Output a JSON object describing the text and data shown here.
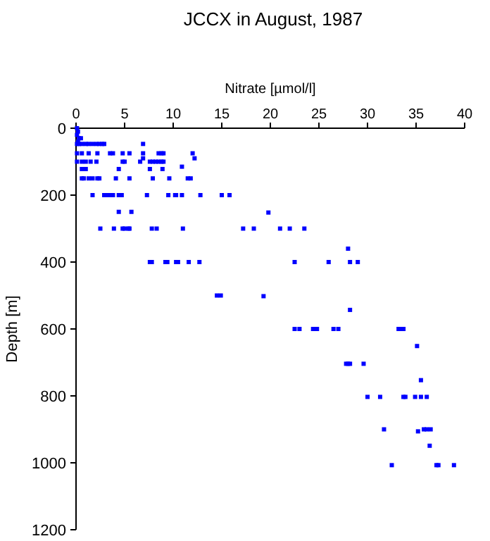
{
  "chart_data": {
    "type": "scatter",
    "title": "JCCX in August, 1987",
    "xlabel": "Nitrate [µmol/l]",
    "ylabel": "Depth [m]",
    "marker": "square",
    "xlim": [
      0,
      40
    ],
    "xticks": [
      0,
      5,
      10,
      15,
      20,
      25,
      30,
      35,
      40
    ],
    "ylim": [
      1200,
      0
    ],
    "yticks": [
      0,
      200,
      400,
      600,
      800,
      1000,
      1200
    ],
    "series": [
      {
        "color": "#0000ff",
        "x": [
          0.1,
          0.2,
          0.1,
          0.3,
          0.5,
          0.2,
          0.1,
          0.3,
          0.6,
          1.0,
          1.3,
          1.7,
          2.1,
          2.4,
          2.7,
          2.9,
          6.9,
          0.1,
          0.6,
          1.3,
          2.2,
          3.5,
          3.8,
          4.8,
          5.5,
          6.9,
          8.5,
          8.8,
          9.0,
          12.0,
          12.2,
          6.9,
          0.1,
          0.6,
          1.0,
          1.5,
          2.1,
          4.8,
          5.0,
          6.6,
          7.6,
          7.9,
          8.2,
          8.5,
          8.8,
          9.0,
          10.9,
          0.6,
          1.0,
          4.4,
          7.6,
          8.9,
          0.6,
          0.8,
          1.3,
          1.7,
          2.2,
          2.4,
          4.1,
          5.5,
          7.9,
          9.6,
          11.5,
          11.8,
          1.7,
          2.9,
          3.1,
          3.4,
          3.6,
          3.8,
          4.4,
          4.7,
          7.3,
          9.5,
          10.2,
          10.3,
          10.9,
          12.8,
          15.0,
          15.8,
          4.4,
          5.7,
          19.8,
          2.5,
          3.9,
          4.8,
          5.0,
          5.4,
          5.5,
          7.8,
          8.3,
          11.0,
          17.2,
          18.3,
          21.0,
          22.0,
          23.5,
          28.0,
          7.6,
          7.8,
          9.2,
          9.4,
          10.3,
          10.5,
          11.6,
          12.7,
          22.5,
          26.0,
          28.2,
          29.0,
          14.5,
          14.9,
          19.3,
          28.2,
          22.5,
          23.0,
          24.4,
          24.6,
          24.8,
          26.5,
          27.0,
          33.2,
          33.5,
          33.7,
          35.1,
          27.8,
          28.0,
          28.2,
          29.6,
          35.5,
          30.0,
          31.3,
          33.7,
          33.9,
          34.9,
          35.5,
          36.1,
          31.7,
          35.8,
          36.1,
          36.5,
          35.2,
          36.4,
          32.5,
          37.1,
          37.3,
          38.9
        ],
        "values": [
          0,
          10,
          20,
          30,
          30,
          40,
          47,
          47,
          47,
          47,
          47,
          47,
          47,
          47,
          47,
          47,
          47,
          75,
          75,
          75,
          75,
          75,
          75,
          75,
          75,
          75,
          75,
          75,
          75,
          75,
          90,
          90,
          100,
          100,
          100,
          100,
          100,
          100,
          100,
          100,
          100,
          100,
          100,
          100,
          100,
          100,
          115,
          122,
          122,
          122,
          122,
          122,
          150,
          150,
          150,
          150,
          150,
          150,
          150,
          150,
          150,
          150,
          150,
          150,
          200,
          200,
          200,
          200,
          200,
          200,
          200,
          200,
          200,
          200,
          200,
          200,
          200,
          200,
          200,
          200,
          250,
          250,
          252,
          300,
          300,
          300,
          300,
          300,
          300,
          300,
          300,
          300,
          300,
          300,
          300,
          300,
          300,
          360,
          400,
          400,
          400,
          400,
          400,
          400,
          400,
          400,
          400,
          400,
          400,
          400,
          500,
          500,
          502,
          543,
          600,
          600,
          600,
          600,
          600,
          600,
          600,
          600,
          600,
          600,
          651,
          704,
          704,
          704,
          704,
          753,
          803,
          803,
          803,
          803,
          803,
          803,
          803,
          900,
          900,
          900,
          900,
          906,
          949,
          1007,
          1007,
          1007,
          1007
        ]
      }
    ]
  }
}
